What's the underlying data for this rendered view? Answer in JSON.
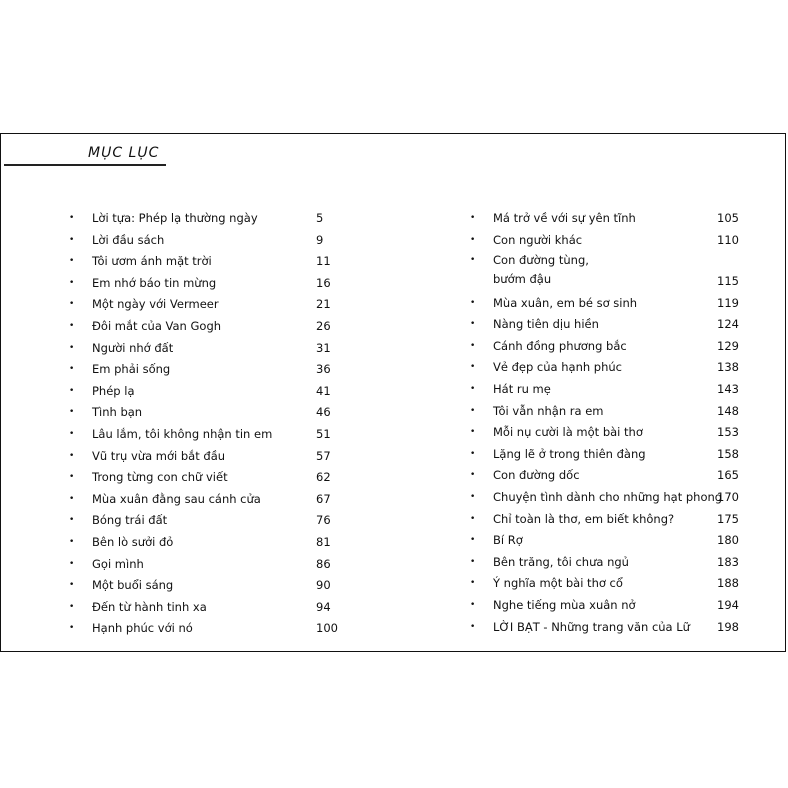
{
  "title": "MỤC LỤC",
  "left_column": [
    {
      "title": "Lời tựa: Phép lạ thường ngày",
      "page": "5"
    },
    {
      "title": "Lời đầu sách",
      "page": "9"
    },
    {
      "title": "Tôi ươm ánh mặt trời",
      "page": "11"
    },
    {
      "title": "Em nhớ báo tin mừng",
      "page": "16"
    },
    {
      "title": "Một ngày với Vermeer",
      "page": "21"
    },
    {
      "title": "Đôi mắt của Van Gogh",
      "page": "26"
    },
    {
      "title": "Người nhớ đất",
      "page": "31"
    },
    {
      "title": "Em phải sống",
      "page": "36"
    },
    {
      "title": "Phép lạ",
      "page": "41"
    },
    {
      "title": "Tình bạn",
      "page": "46"
    },
    {
      "title": "Lâu lắm, tôi không nhận tin em",
      "page": "51"
    },
    {
      "title": "Vũ trụ vừa mới bắt đầu",
      "page": "57"
    },
    {
      "title": "Trong từng con chữ viết",
      "page": "62"
    },
    {
      "title": "Mùa xuân đằng sau cánh cửa",
      "page": "67"
    },
    {
      "title": "Bóng trái đất",
      "page": "76"
    },
    {
      "title": "Bên lò sưởi đỏ",
      "page": "81"
    },
    {
      "title": "Gọi mình",
      "page": "86"
    },
    {
      "title": "Một buổi sáng",
      "page": "90"
    },
    {
      "title": "Đến từ hành tinh xa",
      "page": "94"
    },
    {
      "title": "Hạnh phúc với nó",
      "page": "100"
    }
  ],
  "right_column": [
    {
      "title": "Má trở về với sự yên tĩnh",
      "page": "105"
    },
    {
      "title": "Con người khác",
      "page": "110"
    },
    {
      "title": "Con đường tùng,\nbướm đậu",
      "page": "115"
    },
    {
      "title": "Mùa xuân, em bé sơ sinh",
      "page": "119"
    },
    {
      "title": "Nàng tiên dịu hiền",
      "page": "124"
    },
    {
      "title": "Cánh đồng phương bắc",
      "page": "129"
    },
    {
      "title": "Vẻ đẹp của hạnh phúc",
      "page": "138"
    },
    {
      "title": "Hát ru mẹ",
      "page": "143"
    },
    {
      "title": "Tôi vẫn nhận ra em",
      "page": "148"
    },
    {
      "title": "Mỗi nụ cười là một bài thơ",
      "page": "153"
    },
    {
      "title": "Lặng lẽ ở trong thiên đàng",
      "page": "158"
    },
    {
      "title": "Con đường dốc",
      "page": "165"
    },
    {
      "title": "Chuyện tình dành cho những hạt phong",
      "page": "170"
    },
    {
      "title": "Chỉ toàn là thơ, em biết không?",
      "page": "175"
    },
    {
      "title": "Bí Rợ",
      "page": "180"
    },
    {
      "title": "Bên trăng, tôi chưa ngủ",
      "page": "183"
    },
    {
      "title": "Ý nghĩa một bài thơ cổ",
      "page": "188"
    },
    {
      "title": "Nghe tiếng mùa xuân nở",
      "page": "194"
    },
    {
      "title": "LỜI BẠT - Những trang văn của Lữ",
      "page": "198"
    }
  ]
}
